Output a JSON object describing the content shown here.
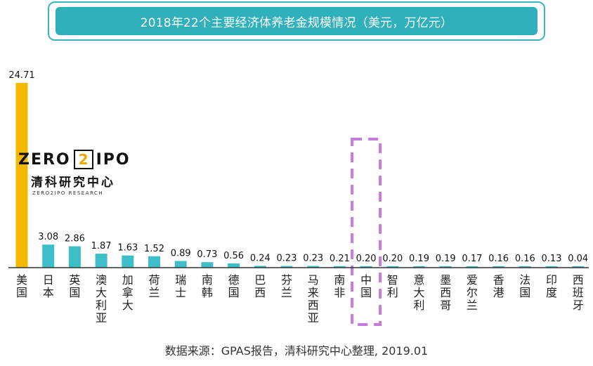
{
  "chart_data": {
    "type": "bar",
    "title": "2018年22个主要经济体养老金规模情况（美元，万亿元）",
    "categories": [
      "美国",
      "日本",
      "英国",
      "澳大利亚",
      "加拿大",
      "荷兰",
      "瑞士",
      "南韩",
      "德国",
      "巴西",
      "芬兰",
      "马来西亚",
      "南非",
      "中国",
      "智利",
      "意大利",
      "墨西哥",
      "爱尔兰",
      "香港",
      "法国",
      "印度",
      "西班牙"
    ],
    "values": [
      24.71,
      3.08,
      2.86,
      1.87,
      1.63,
      1.52,
      0.89,
      0.73,
      0.56,
      0.24,
      0.23,
      0.23,
      0.21,
      0.2,
      0.2,
      0.19,
      0.19,
      0.17,
      0.16,
      0.16,
      0.13,
      0.04
    ],
    "value_labels": [
      "24.71",
      "3.08",
      "2.86",
      "1.87",
      "1.63",
      "1.52",
      "0.89",
      "0.73",
      "0.56",
      "0.24",
      "0.23",
      "0.23",
      "0.21",
      "0.20",
      "0.20",
      "0.19",
      "0.19",
      "0.17",
      "0.16",
      "0.16",
      "0.13",
      "0.04"
    ],
    "highlight_category": "中国",
    "colors": {
      "first_bar": "#f5b800",
      "bars": "#3dbec8",
      "highlight_frame": "#c77be0",
      "axis": "#333333"
    },
    "xlabel": "",
    "ylabel": "",
    "ylim": [
      0,
      24.71
    ],
    "grid": false
  },
  "source": "数据来源：GPAS报告，清科研究中心整理, 2019.01",
  "logo": {
    "left": "ZERO",
    "digit": "2",
    "right": "IPO",
    "cn": "清科研究中心",
    "en": "ZERO2IPO RESEARCH"
  }
}
